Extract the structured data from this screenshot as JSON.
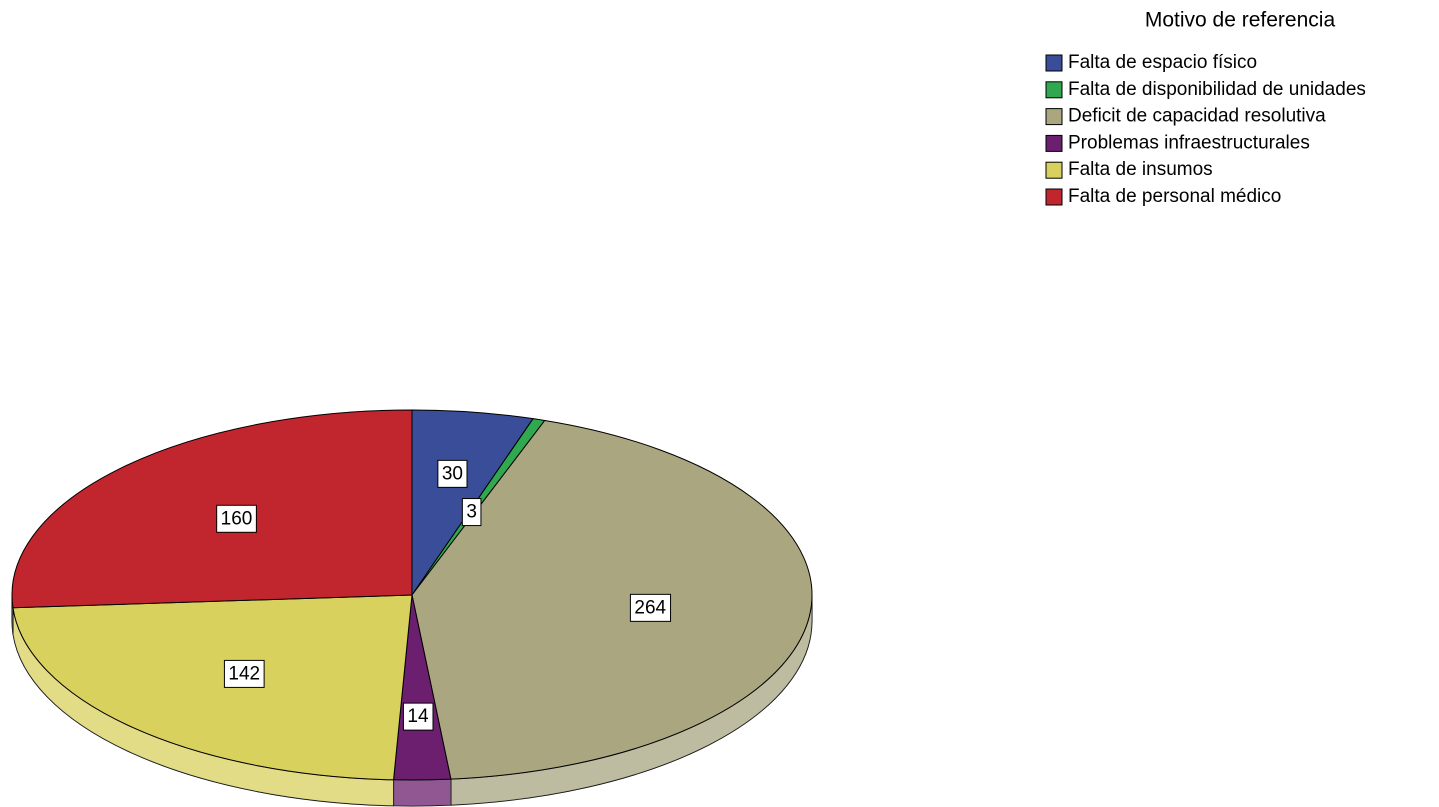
{
  "chart_data": {
    "type": "pie",
    "legend_title": "Motivo de referencia",
    "categories": [
      "Falta de espacio físico",
      "Falta de disponibilidad de unidades",
      "Deficit de capacidad resolutiva",
      "Problemas infraestructurales",
      "Falta de insumos",
      "Falta de personal médico"
    ],
    "values": [
      30,
      3,
      264,
      14,
      142,
      160
    ],
    "colors": [
      "#3a4d99",
      "#2fa84f",
      "#a9a680",
      "#6b1f6e",
      "#d9d15e",
      "#c1262f"
    ],
    "legend": "top-right"
  }
}
